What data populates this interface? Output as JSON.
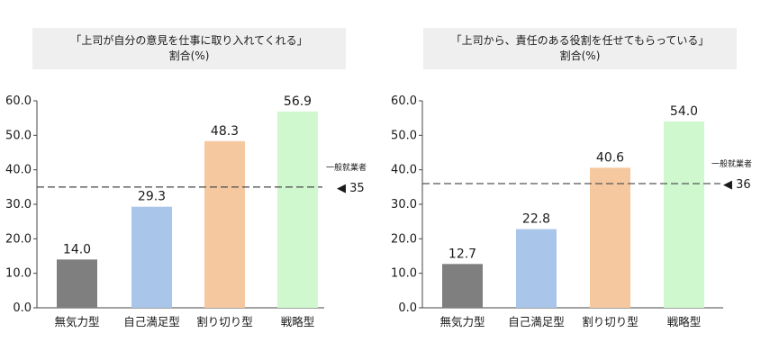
{
  "chart_data": [
    {
      "type": "bar",
      "title": "「上司が自分の意見を仕事に取り入れてくれる」",
      "subtitle": "割合(%)",
      "categories": [
        "無気力型",
        "自己満足型",
        "割り切り型",
        "戦略型"
      ],
      "values": [
        14.0,
        29.3,
        48.3,
        56.9
      ],
      "value_labels": [
        "14.0",
        "29.3",
        "48.3",
        "56.9"
      ],
      "bar_colors": [
        "#7f7f7f",
        "#a9c5ea",
        "#f6c8a0",
        "#cff8cf"
      ],
      "ylim": [
        0,
        60
      ],
      "yticks": [
        "0.0",
        "10.0",
        "20.0",
        "30.0",
        "40.0",
        "50.0",
        "60.0"
      ],
      "reference_line": {
        "label": "一般就業者",
        "value": 35,
        "value_label": "◀ 35"
      },
      "grid": false
    },
    {
      "type": "bar",
      "title": "「上司から、責任のある役割を任せてもらっている」",
      "subtitle": "割合(%)",
      "categories": [
        "無気力型",
        "自己満足型",
        "割り切り型",
        "戦略型"
      ],
      "values": [
        12.7,
        22.8,
        40.6,
        54.0
      ],
      "value_labels": [
        "12.7",
        "22.8",
        "40.6",
        "54.0"
      ],
      "bar_colors": [
        "#7f7f7f",
        "#a9c5ea",
        "#f6c8a0",
        "#cff8cf"
      ],
      "ylim": [
        0,
        60
      ],
      "yticks": [
        "0.0",
        "10.0",
        "20.0",
        "30.0",
        "40.0",
        "50.0",
        "60.0"
      ],
      "reference_line": {
        "label": "一般就業者",
        "value": 36,
        "value_label": "◀ 36"
      },
      "grid": false
    }
  ]
}
